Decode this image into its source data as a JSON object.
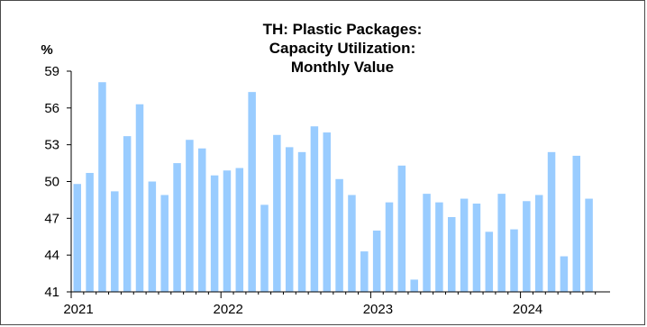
{
  "chart_data": {
    "type": "bar",
    "title": [
      "TH: Plastic Packages:",
      "Capacity Utilization:",
      "Monthly Value"
    ],
    "unit_label": "%",
    "ylim": [
      41,
      59
    ],
    "yticks": [
      41,
      44,
      47,
      50,
      53,
      56,
      59
    ],
    "xtick_labels": [
      "2021",
      "2022",
      "2023",
      "2024"
    ],
    "x_start": "2021-01",
    "bar_color": "#99ccff",
    "series": [
      {
        "values": [
          49.8,
          50.7,
          58.1,
          49.2,
          53.7,
          56.3,
          50.0,
          48.9,
          51.5,
          53.4,
          52.7,
          50.5,
          50.9,
          51.1,
          57.3,
          48.1,
          53.8,
          52.8,
          52.4,
          54.5,
          54.0,
          50.2,
          48.9,
          44.3,
          46.0,
          48.3,
          51.3,
          42.0,
          49.0,
          48.3,
          47.1,
          48.6,
          48.2,
          45.9,
          49.0,
          46.1,
          48.4,
          48.9,
          52.4,
          43.9,
          52.1,
          48.6
        ]
      }
    ]
  }
}
